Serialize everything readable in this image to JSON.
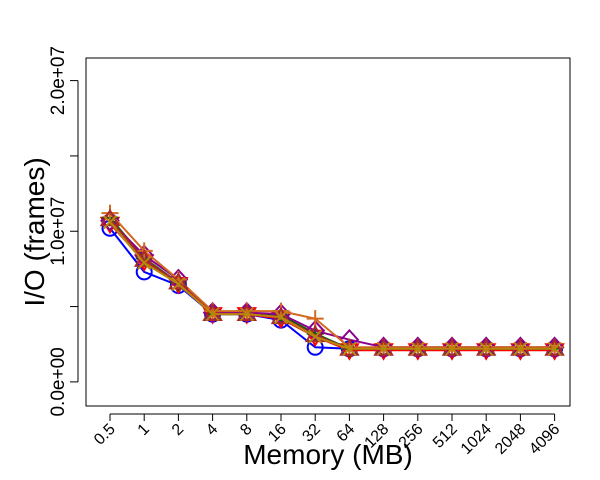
{
  "chart_data": {
    "type": "line",
    "title": "",
    "xlabel": "Memory (MB)",
    "ylabel": "I/O (frames)",
    "categories": [
      "0.5",
      "1",
      "2",
      "4",
      "8",
      "16",
      "32",
      "64",
      "128",
      "256",
      "512",
      "1024",
      "2048",
      "4096"
    ],
    "y_ticks": [
      {
        "value": 0,
        "label": "0.0e+00"
      },
      {
        "value": 10000000,
        "label": "1.0e+07"
      },
      {
        "value": 20000000,
        "label": "2.0e+07"
      }
    ],
    "ylim": [
      -1600000,
      21500000
    ],
    "grid": false,
    "legend": "none",
    "series": [
      {
        "color": "#0000ff",
        "marker": "circle",
        "values": [
          10200000,
          7300000,
          6400000,
          4500000,
          4500000,
          4100000,
          2300000,
          2200000,
          2200000,
          2200000,
          2200000,
          2200000,
          2200000,
          2200000
        ]
      },
      {
        "color": "#ff0000",
        "marker": "triangle-down",
        "values": [
          10500000,
          8000000,
          6500000,
          4500000,
          4500000,
          4200000,
          3000000,
          2100000,
          2100000,
          2100000,
          2100000,
          2100000,
          2100000,
          2100000
        ]
      },
      {
        "color": "#006400",
        "marker": "plus",
        "values": [
          10900000,
          8200000,
          6600000,
          4500000,
          4500000,
          4400000,
          3200000,
          2200000,
          2200000,
          2200000,
          2200000,
          2200000,
          2200000,
          2200000
        ]
      },
      {
        "color": "#8b008b",
        "marker": "diamond",
        "values": [
          10700000,
          8400000,
          6800000,
          4600000,
          4600000,
          4500000,
          3400000,
          2800000,
          2300000,
          2300000,
          2300000,
          2300000,
          2300000,
          2300000
        ]
      },
      {
        "color": "#d2691e",
        "marker": "plus",
        "values": [
          11200000,
          8700000,
          6800000,
          4700000,
          4700000,
          4700000,
          4200000,
          2300000,
          2300000,
          2300000,
          2300000,
          2300000,
          2300000,
          2300000
        ]
      },
      {
        "color": "#a52a2a",
        "marker": "triangle-up",
        "values": [
          10800000,
          8100000,
          6600000,
          4500000,
          4500000,
          4300000,
          3100000,
          2200000,
          2200000,
          2200000,
          2200000,
          2200000,
          2200000,
          2200000
        ]
      },
      {
        "color": "#b8860b",
        "marker": "cross",
        "values": [
          10600000,
          7900000,
          6500000,
          4500000,
          4500000,
          4300000,
          3000000,
          2200000,
          2200000,
          2200000,
          2200000,
          2200000,
          2200000,
          2200000
        ]
      }
    ]
  }
}
